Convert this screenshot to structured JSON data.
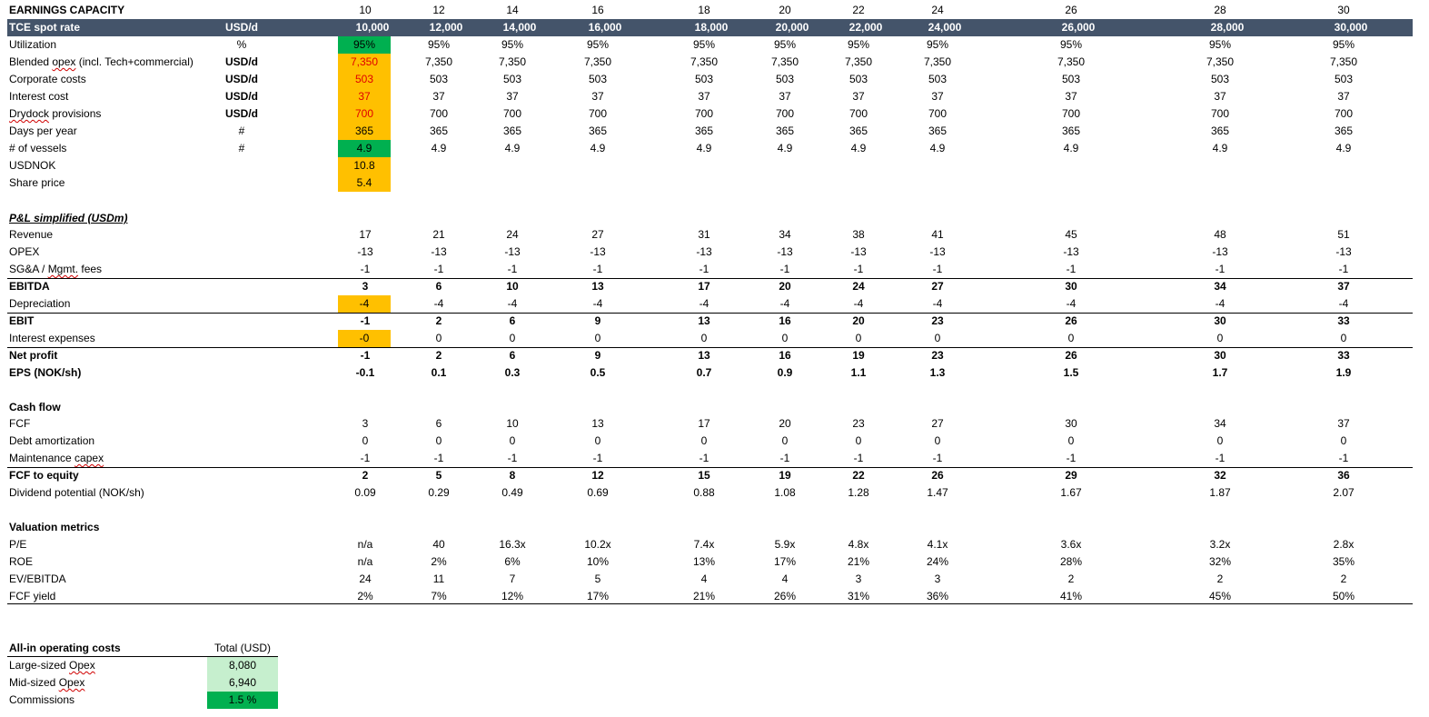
{
  "columns": [
    "10",
    "12",
    "14",
    "16",
    "18",
    "20",
    "22",
    "24",
    "26",
    "28",
    "30"
  ],
  "title": "EARNINGS CAPACITY",
  "assumptions": [
    {
      "label": "TCE spot rate",
      "unit": "USD/d",
      "values": [
        "10,000",
        "12,000",
        "14,000",
        "16,000",
        "18,000",
        "20,000",
        "22,000",
        "24,000",
        "26,000",
        "28,000",
        "30,000"
      ]
    },
    {
      "label": "Utilization",
      "unit": "%",
      "values": [
        "95%",
        "95%",
        "95%",
        "95%",
        "95%",
        "95%",
        "95%",
        "95%",
        "95%",
        "95%",
        "95%"
      ]
    },
    {
      "label": "Blended opex (incl. Tech+commercial)",
      "unit": "USD/d",
      "values": [
        "7,350",
        "7,350",
        "7,350",
        "7,350",
        "7,350",
        "7,350",
        "7,350",
        "7,350",
        "7,350",
        "7,350",
        "7,350"
      ]
    },
    {
      "label": "Corporate costs",
      "unit": "USD/d",
      "values": [
        "503",
        "503",
        "503",
        "503",
        "503",
        "503",
        "503",
        "503",
        "503",
        "503",
        "503"
      ]
    },
    {
      "label": "Interest cost",
      "unit": "USD/d",
      "values": [
        "37",
        "37",
        "37",
        "37",
        "37",
        "37",
        "37",
        "37",
        "37",
        "37",
        "37"
      ]
    },
    {
      "label": "Drydock provisions",
      "unit": "USD/d",
      "values": [
        "700",
        "700",
        "700",
        "700",
        "700",
        "700",
        "700",
        "700",
        "700",
        "700",
        "700"
      ]
    },
    {
      "label": "Days per year",
      "unit": "#",
      "values": [
        "365",
        "365",
        "365",
        "365",
        "365",
        "365",
        "365",
        "365",
        "365",
        "365",
        "365"
      ]
    },
    {
      "label": "# of vessels",
      "unit": "#",
      "values": [
        "4.9",
        "4.9",
        "4.9",
        "4.9",
        "4.9",
        "4.9",
        "4.9",
        "4.9",
        "4.9",
        "4.9",
        "4.9"
      ]
    },
    {
      "label": "USDNOK",
      "unit": "",
      "values": [
        "10.8"
      ]
    },
    {
      "label": "Share price",
      "unit": "",
      "values": [
        "5.4"
      ]
    }
  ],
  "pl_title": "P&L simplified (USDm)",
  "pl": [
    {
      "label": "Revenue",
      "values": [
        "17",
        "21",
        "24",
        "27",
        "31",
        "34",
        "38",
        "41",
        "45",
        "48",
        "51"
      ]
    },
    {
      "label": "OPEX",
      "values": [
        "-13",
        "-13",
        "-13",
        "-13",
        "-13",
        "-13",
        "-13",
        "-13",
        "-13",
        "-13",
        "-13"
      ]
    },
    {
      "label": "SG&A / Mgmt. fees",
      "values": [
        "-1",
        "-1",
        "-1",
        "-1",
        "-1",
        "-1",
        "-1",
        "-1",
        "-1",
        "-1",
        "-1"
      ]
    },
    {
      "label": "EBITDA",
      "values": [
        "3",
        "6",
        "10",
        "13",
        "17",
        "20",
        "24",
        "27",
        "30",
        "34",
        "37"
      ]
    },
    {
      "label": "Depreciation",
      "values": [
        "-4",
        "-4",
        "-4",
        "-4",
        "-4",
        "-4",
        "-4",
        "-4",
        "-4",
        "-4",
        "-4"
      ]
    },
    {
      "label": "EBIT",
      "values": [
        "-1",
        "2",
        "6",
        "9",
        "13",
        "16",
        "20",
        "23",
        "26",
        "30",
        "33"
      ]
    },
    {
      "label": "Interest expenses",
      "values": [
        "-0",
        "0",
        "0",
        "0",
        "0",
        "0",
        "0",
        "0",
        "0",
        "0",
        "0"
      ]
    },
    {
      "label": "Net profit",
      "values": [
        "-1",
        "2",
        "6",
        "9",
        "13",
        "16",
        "19",
        "23",
        "26",
        "30",
        "33"
      ]
    },
    {
      "label": "EPS (NOK/sh)",
      "values": [
        "-0.1",
        "0.1",
        "0.3",
        "0.5",
        "0.7",
        "0.9",
        "1.1",
        "1.3",
        "1.5",
        "1.7",
        "1.9"
      ]
    }
  ],
  "cf_title": "Cash flow",
  "cf": [
    {
      "label": "FCF",
      "values": [
        "3",
        "6",
        "10",
        "13",
        "17",
        "20",
        "23",
        "27",
        "30",
        "34",
        "37"
      ]
    },
    {
      "label": "Debt amortization",
      "values": [
        "0",
        "0",
        "0",
        "0",
        "0",
        "0",
        "0",
        "0",
        "0",
        "0",
        "0"
      ]
    },
    {
      "label": "Maintenance capex",
      "values": [
        "-1",
        "-1",
        "-1",
        "-1",
        "-1",
        "-1",
        "-1",
        "-1",
        "-1",
        "-1",
        "-1"
      ]
    },
    {
      "label": "FCF to equity",
      "values": [
        "2",
        "5",
        "8",
        "12",
        "15",
        "19",
        "22",
        "26",
        "29",
        "32",
        "36"
      ]
    },
    {
      "label": "Dividend potential (NOK/sh)",
      "values": [
        "0.09",
        "0.29",
        "0.49",
        "0.69",
        "0.88",
        "1.08",
        "1.28",
        "1.47",
        "1.67",
        "1.87",
        "2.07"
      ]
    }
  ],
  "val_title": "Valuation metrics",
  "val": [
    {
      "label": "P/E",
      "values": [
        "n/a",
        "40",
        "16.3x",
        "10.2x",
        "7.4x",
        "5.9x",
        "4.8x",
        "4.1x",
        "3.6x",
        "3.2x",
        "2.8x"
      ]
    },
    {
      "label": "ROE",
      "values": [
        "n/a",
        "2%",
        "6%",
        "10%",
        "13%",
        "17%",
        "21%",
        "24%",
        "28%",
        "32%",
        "35%"
      ]
    },
    {
      "label": "EV/EBITDA",
      "values": [
        "24",
        "11",
        "7",
        "5",
        "4",
        "4",
        "3",
        "3",
        "2",
        "2",
        "2"
      ]
    },
    {
      "label": "FCF yield",
      "values": [
        "2%",
        "7%",
        "12%",
        "17%",
        "21%",
        "26%",
        "31%",
        "36%",
        "41%",
        "45%",
        "50%"
      ]
    }
  ],
  "costs_title": "All-in operating costs",
  "costs_header": "Total (USD)",
  "costs": [
    {
      "label": "Large-sized Opex",
      "value": "8,080"
    },
    {
      "label": "Mid-sized Opex",
      "value": "6,940"
    },
    {
      "label": "Commissions",
      "value": "1.5 %"
    }
  ],
  "colors": {
    "header": "#44546a",
    "input_yellow": "#ffc000",
    "input_green": "#00b050",
    "light_green": "#c6efce",
    "red_text": "#e00000"
  }
}
